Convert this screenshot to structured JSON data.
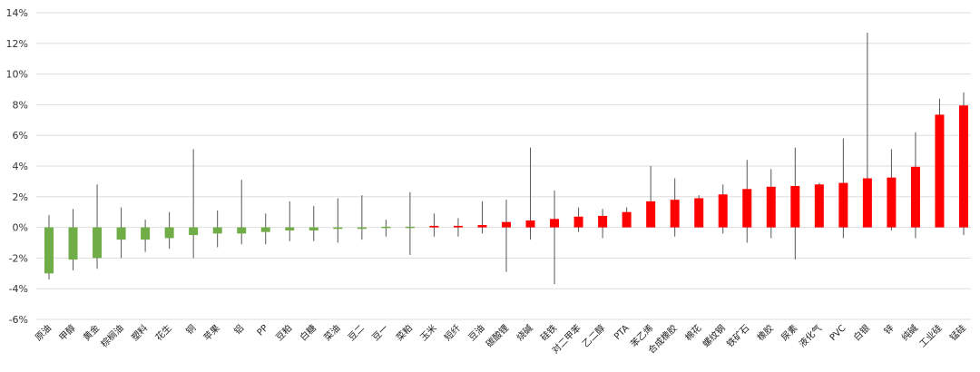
{
  "chart_data": {
    "type": "bar",
    "title": "",
    "xlabel": "",
    "ylabel": "",
    "ylim": [
      -6,
      14
    ],
    "yticks": [
      -6,
      -4,
      -2,
      0,
      2,
      4,
      6,
      8,
      10,
      12,
      14
    ],
    "ytick_suffix": "%",
    "grid": true,
    "legend": "none",
    "colors": {
      "positive": "#ff0000",
      "negative": "#70ad47",
      "wick": "#555555",
      "grid": "#dddddd"
    },
    "categories": [
      "原油",
      "甲醇",
      "黄金",
      "棕榈油",
      "塑料",
      "花生",
      "铜",
      "苹果",
      "铝",
      "PP",
      "豆粕",
      "白糖",
      "菜油",
      "豆二",
      "豆一",
      "菜粕",
      "玉米",
      "短纤",
      "豆油",
      "碳酸锂",
      "烧碱",
      "硅铁",
      "对二甲苯",
      "乙二醇",
      "PTA",
      "苯乙烯",
      "合成橡胶",
      "棉花",
      "螺纹钢",
      "铁矿石",
      "橡胶",
      "尿素",
      "液化气",
      "PVC",
      "白银",
      "锌",
      "纯碱",
      "工业硅",
      "锰硅"
    ],
    "values": [
      -3.0,
      -2.1,
      -2.0,
      -0.8,
      -0.8,
      -0.7,
      -0.5,
      -0.4,
      -0.4,
      -0.3,
      -0.2,
      -0.2,
      -0.1,
      -0.1,
      -0.05,
      -0.03,
      0.1,
      0.1,
      0.15,
      0.35,
      0.45,
      0.55,
      0.7,
      0.75,
      1.0,
      1.7,
      1.8,
      1.9,
      2.15,
      2.5,
      2.65,
      2.7,
      2.8,
      2.9,
      3.2,
      3.25,
      3.95,
      7.35,
      7.95
    ],
    "highs": [
      0.8,
      1.2,
      2.8,
      1.3,
      0.5,
      1.0,
      5.1,
      1.1,
      3.1,
      0.9,
      1.7,
      1.4,
      1.9,
      2.1,
      0.5,
      2.3,
      0.9,
      0.6,
      1.7,
      1.8,
      5.2,
      2.4,
      1.3,
      1.2,
      1.3,
      4.0,
      3.2,
      2.1,
      2.8,
      4.4,
      3.8,
      5.2,
      2.9,
      5.8,
      12.7,
      5.1,
      6.2,
      8.4,
      8.8
    ],
    "lows": [
      -3.4,
      -2.8,
      -2.7,
      -2.0,
      -1.6,
      -1.4,
      -2.0,
      -1.3,
      -1.1,
      -1.1,
      -0.9,
      -0.9,
      -1.0,
      -0.8,
      -0.6,
      -1.8,
      -0.6,
      -0.6,
      -0.4,
      -2.9,
      -0.8,
      -3.7,
      -0.3,
      -0.7,
      0.0,
      0.0,
      -0.6,
      0.0,
      -0.4,
      -1.0,
      -0.7,
      -2.1,
      0.0,
      -0.7,
      0.0,
      -0.2,
      -0.7,
      0.0,
      -0.5
    ]
  }
}
